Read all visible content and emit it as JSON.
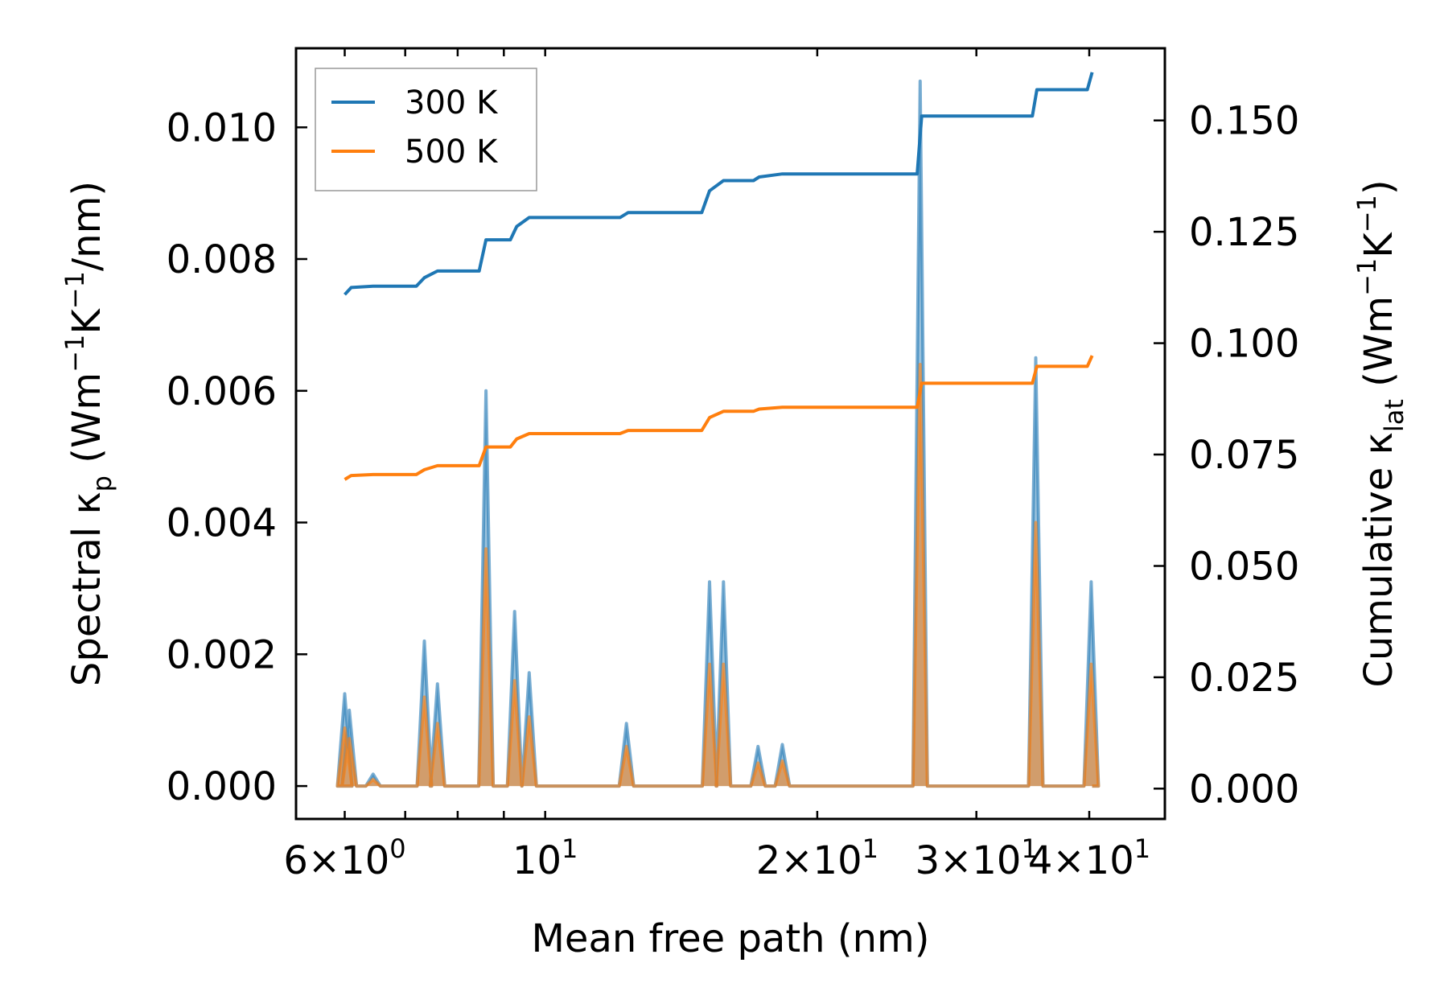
{
  "chart_data": {
    "type": "line",
    "xscale": "log",
    "xlabel": "Mean free path (nm)",
    "ylabel_left": {
      "main": "Spectral κ",
      "sub": "p",
      "unit_open": " (Wm",
      "sup1": "−1",
      "mid": "K",
      "sup2": "−1",
      "unit_close": "/nm)"
    },
    "ylabel_right": {
      "main": "Cumulative κ",
      "sub": "lat",
      "unit_open": " (Wm",
      "sup1": "−1",
      "mid": "K",
      "sup2": "−1",
      "unit_close": ")"
    },
    "xlim": [
      5.3,
      48.5
    ],
    "ylim_left": [
      -0.0005,
      0.0112
    ],
    "ylim_right": [
      -0.0068,
      0.1662
    ],
    "x_ticks": [
      {
        "value": 6,
        "base": "6×10",
        "exp": "0"
      },
      {
        "value": 10,
        "base": "10",
        "exp": "1"
      },
      {
        "value": 20,
        "base": "2×10",
        "exp": "1"
      },
      {
        "value": 30,
        "base": "3×10",
        "exp": "1"
      },
      {
        "value": 40,
        "base": "4×10",
        "exp": "1"
      }
    ],
    "y_left_ticks": [
      "0.000",
      "0.002",
      "0.004",
      "0.006",
      "0.008",
      "0.010"
    ],
    "y_left_tick_values": [
      0,
      0.002,
      0.004,
      0.006,
      0.008,
      0.01
    ],
    "y_right_ticks": [
      "0.000",
      "0.025",
      "0.050",
      "0.075",
      "0.100",
      "0.125",
      "0.150"
    ],
    "y_right_tick_values": [
      0,
      0.025,
      0.05,
      0.075,
      0.1,
      0.125,
      0.15
    ],
    "legend": {
      "position": "upper-left",
      "entries": [
        {
          "label": "300 K",
          "color": "#1f77b4"
        },
        {
          "label": "500 K",
          "color": "#ff7f0e"
        }
      ]
    },
    "spectral_series": [
      {
        "name": "300 K",
        "color": "#1f77b4",
        "peaks": [
          [
            6.0,
            0.0014
          ],
          [
            6.07,
            0.00115
          ],
          [
            6.45,
            0.00018
          ],
          [
            7.35,
            0.0022
          ],
          [
            7.6,
            0.00155
          ],
          [
            8.6,
            0.006
          ],
          [
            9.25,
            0.00265
          ],
          [
            9.6,
            0.00172
          ],
          [
            12.3,
            0.00095
          ],
          [
            15.2,
            0.0031
          ],
          [
            15.75,
            0.0031
          ],
          [
            17.2,
            0.0006
          ],
          [
            18.3,
            0.00063
          ],
          [
            26.0,
            0.0107
          ],
          [
            34.9,
            0.0065
          ],
          [
            40.2,
            0.0031
          ]
        ]
      },
      {
        "name": "500 K",
        "color": "#ff7f0e",
        "peaks": [
          [
            6.0,
            0.00088
          ],
          [
            6.07,
            0.00072
          ],
          [
            6.45,
            0.0001
          ],
          [
            7.35,
            0.00135
          ],
          [
            7.6,
            0.00095
          ],
          [
            8.6,
            0.0036
          ],
          [
            9.25,
            0.0016
          ],
          [
            9.6,
            0.00105
          ],
          [
            12.3,
            0.0006
          ],
          [
            15.2,
            0.00185
          ],
          [
            15.75,
            0.00185
          ],
          [
            17.2,
            0.00035
          ],
          [
            18.3,
            0.00038
          ],
          [
            26.0,
            0.0064
          ],
          [
            34.9,
            0.004
          ],
          [
            40.2,
            0.00185
          ]
        ]
      }
    ],
    "cumulative_series": [
      {
        "name": "300 K",
        "color": "#1f77b4",
        "points": [
          [
            6.0,
            0.1109
          ],
          [
            6.1,
            0.1125
          ],
          [
            6.45,
            0.1128
          ],
          [
            7.2,
            0.1128
          ],
          [
            7.35,
            0.1147
          ],
          [
            7.6,
            0.1162
          ],
          [
            8.45,
            0.1162
          ],
          [
            8.6,
            0.1232
          ],
          [
            9.15,
            0.1232
          ],
          [
            9.3,
            0.1262
          ],
          [
            9.6,
            0.1282
          ],
          [
            12.1,
            0.1282
          ],
          [
            12.35,
            0.1293
          ],
          [
            14.9,
            0.1293
          ],
          [
            15.2,
            0.1342
          ],
          [
            15.75,
            0.1365
          ],
          [
            17.0,
            0.1365
          ],
          [
            17.25,
            0.1373
          ],
          [
            18.3,
            0.138
          ],
          [
            25.8,
            0.138
          ],
          [
            26.1,
            0.151
          ],
          [
            34.6,
            0.151
          ],
          [
            35.0,
            0.1569
          ],
          [
            39.8,
            0.1569
          ],
          [
            40.3,
            0.1608
          ]
        ]
      },
      {
        "name": "500 K",
        "color": "#ff7f0e",
        "points": [
          [
            6.0,
            0.0694
          ],
          [
            6.1,
            0.0703
          ],
          [
            6.45,
            0.0705
          ],
          [
            7.2,
            0.0705
          ],
          [
            7.35,
            0.0716
          ],
          [
            7.6,
            0.0725
          ],
          [
            8.45,
            0.0725
          ],
          [
            8.6,
            0.0767
          ],
          [
            9.15,
            0.0767
          ],
          [
            9.3,
            0.0785
          ],
          [
            9.6,
            0.0797
          ],
          [
            12.1,
            0.0797
          ],
          [
            12.35,
            0.0804
          ],
          [
            14.9,
            0.0804
          ],
          [
            15.2,
            0.0833
          ],
          [
            15.75,
            0.0847
          ],
          [
            17.0,
            0.0847
          ],
          [
            17.25,
            0.0852
          ],
          [
            18.3,
            0.0856
          ],
          [
            25.8,
            0.0856
          ],
          [
            26.1,
            0.091
          ],
          [
            34.6,
            0.091
          ],
          [
            35.0,
            0.0948
          ],
          [
            39.8,
            0.0948
          ],
          [
            40.3,
            0.0972
          ]
        ]
      }
    ]
  }
}
